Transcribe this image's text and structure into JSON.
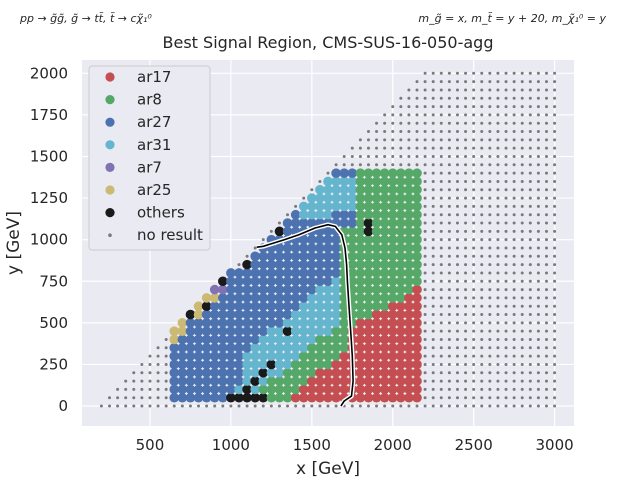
{
  "chart_data": {
    "type": "scatter",
    "title": "Best Signal Region, CMS-SUS-16-050-agg",
    "subtitle_left": "pp → g̃g̃, g̃ → tt̃, t̃ → cχ̃₁⁰",
    "subtitle_right": "m_g̃ = x, m_t̃ = y + 20, m_χ̃₁⁰ = y",
    "xlabel": "x [GeV]",
    "ylabel": "y [GeV]",
    "xlim": [
      80,
      3120
    ],
    "ylim": [
      -120,
      2080
    ],
    "xticks": [
      500,
      1000,
      1500,
      2000,
      2500,
      3000
    ],
    "yticks": [
      0,
      250,
      500,
      750,
      1000,
      1250,
      1500,
      1750,
      2000
    ],
    "grid": true,
    "legend_position": "top-left",
    "colors": {
      "ar17": "#c44e52",
      "ar8": "#55a868",
      "ar27": "#4c72b0",
      "ar31": "#64b5cd",
      "ar7": "#8172b2",
      "ar25": "#ccb974",
      "others": "#1a1a1a",
      "no_result": "#7a7a7a",
      "contour": "#000000",
      "background": "#eaeaf2"
    },
    "series": [
      {
        "name": "ar17"
      },
      {
        "name": "ar8"
      },
      {
        "name": "ar27"
      },
      {
        "name": "ar31"
      },
      {
        "name": "ar7"
      },
      {
        "name": "ar25"
      },
      {
        "name": "others"
      },
      {
        "name": "no result"
      }
    ],
    "grid_spec": {
      "no_result": {
        "x_min": 200,
        "x_max": 3000,
        "x_step": 50,
        "y_min": 0,
        "y_max": 2000,
        "y_step": 50
      },
      "results": {
        "x_min": 650,
        "x_max": 2150,
        "x_step": 50,
        "y_min": 50,
        "y_max": 1400,
        "y_step": 50
      }
    },
    "others_points": [
      [
        1000,
        50
      ],
      [
        1050,
        50
      ],
      [
        1100,
        50
      ],
      [
        1150,
        50
      ],
      [
        1200,
        50
      ],
      [
        1100,
        100
      ],
      [
        1150,
        150
      ],
      [
        1200,
        200
      ],
      [
        1250,
        250
      ],
      [
        1350,
        450
      ],
      [
        750,
        550
      ],
      [
        850,
        600
      ],
      [
        800,
        750
      ],
      [
        950,
        750
      ],
      [
        1000,
        850
      ],
      [
        1100,
        850
      ],
      [
        1100,
        900
      ],
      [
        1200,
        1000
      ],
      [
        1300,
        1050
      ],
      [
        1350,
        1150
      ],
      [
        1400,
        1200
      ],
      [
        1850,
        1100
      ],
      [
        1850,
        1050
      ]
    ],
    "contour": [
      [
        1680,
        0
      ],
      [
        1700,
        30
      ],
      [
        1745,
        60
      ],
      [
        1755,
        150
      ],
      [
        1750,
        300
      ],
      [
        1740,
        450
      ],
      [
        1730,
        600
      ],
      [
        1720,
        750
      ],
      [
        1715,
        850
      ],
      [
        1705,
        950
      ],
      [
        1685,
        1030
      ],
      [
        1645,
        1080
      ],
      [
        1600,
        1090
      ],
      [
        1520,
        1070
      ],
      [
        1420,
        1030
      ],
      [
        1330,
        1000
      ],
      [
        1250,
        975
      ],
      [
        1200,
        960
      ],
      [
        1160,
        955
      ]
    ]
  }
}
